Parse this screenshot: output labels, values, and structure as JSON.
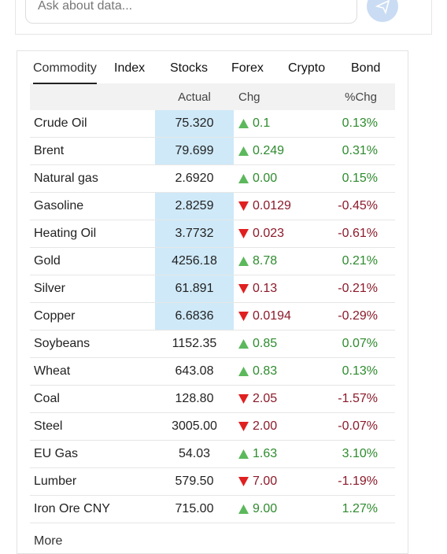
{
  "search": {
    "placeholder": "Ask about data..."
  },
  "tabs": [
    "Commodity",
    "Index",
    "Stocks",
    "Forex",
    "Crypto",
    "Bond"
  ],
  "active_tab": 0,
  "table": {
    "columns": [
      "Actual",
      "Chg",
      "%Chg"
    ],
    "rows": [
      {
        "name": "Crude Oil",
        "actual": "75.320",
        "chg": "0.1",
        "direction": "up",
        "pct": "0.13%",
        "highlight": true
      },
      {
        "name": "Brent",
        "actual": "79.699",
        "chg": "0.249",
        "direction": "up",
        "pct": "0.31%",
        "highlight": true
      },
      {
        "name": "Natural gas",
        "actual": "2.6920",
        "chg": "0.00",
        "direction": "up",
        "pct": "0.15%",
        "highlight": false
      },
      {
        "name": "Gasoline",
        "actual": "2.8259",
        "chg": "0.0129",
        "direction": "down",
        "pct": "-0.45%",
        "highlight": true
      },
      {
        "name": "Heating Oil",
        "actual": "3.7732",
        "chg": "0.023",
        "direction": "down",
        "pct": "-0.61%",
        "highlight": true
      },
      {
        "name": "Gold",
        "actual": "4256.18",
        "chg": "8.78",
        "direction": "up",
        "pct": "0.21%",
        "highlight": true
      },
      {
        "name": "Silver",
        "actual": "61.891",
        "chg": "0.13",
        "direction": "down",
        "pct": "-0.21%",
        "highlight": true
      },
      {
        "name": "Copper",
        "actual": "6.6836",
        "chg": "0.0194",
        "direction": "down",
        "pct": "-0.29%",
        "highlight": true
      },
      {
        "name": "Soybeans",
        "actual": "1152.35",
        "chg": "0.85",
        "direction": "up",
        "pct": "0.07%",
        "highlight": false
      },
      {
        "name": "Wheat",
        "actual": "643.08",
        "chg": "0.83",
        "direction": "up",
        "pct": "0.13%",
        "highlight": false
      },
      {
        "name": "Coal",
        "actual": "128.80",
        "chg": "2.05",
        "direction": "down",
        "pct": "-1.57%",
        "highlight": false
      },
      {
        "name": "Steel",
        "actual": "3005.00",
        "chg": "2.00",
        "direction": "down",
        "pct": "-0.07%",
        "highlight": false
      },
      {
        "name": "EU Gas",
        "actual": "54.03",
        "chg": "1.63",
        "direction": "up",
        "pct": "3.10%",
        "highlight": false
      },
      {
        "name": "Lumber",
        "actual": "579.50",
        "chg": "7.00",
        "direction": "down",
        "pct": "-1.19%",
        "highlight": false
      },
      {
        "name": "Iron Ore CNY",
        "actual": "715.00",
        "chg": "9.00",
        "direction": "up",
        "pct": "1.27%",
        "highlight": false
      }
    ],
    "more": "More"
  }
}
